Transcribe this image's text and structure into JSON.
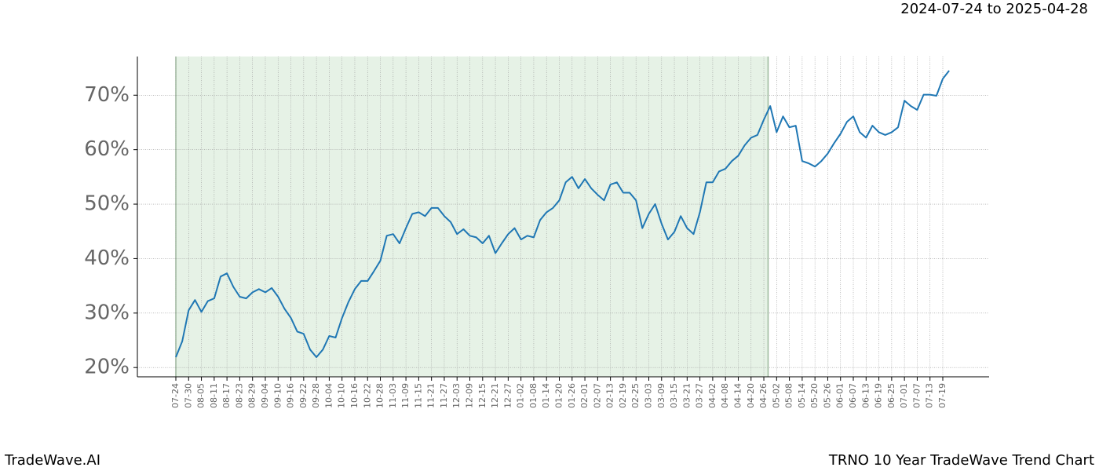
{
  "chart_data": {
    "type": "line",
    "title": "2024-07-24 to 2025-04-28",
    "footer_left": "TradeWave.AI",
    "footer_right": "TRNO 10 Year TradeWave Trend Chart",
    "shaded_range": [
      "2024-07-24",
      "2025-04-28"
    ],
    "categories": [
      "07-24",
      null,
      "07-30",
      null,
      "08-05",
      null,
      "08-11",
      null,
      "08-17",
      null,
      "08-23",
      null,
      "08-29",
      null,
      "09-04",
      null,
      "09-10",
      null,
      "09-16",
      null,
      "09-22",
      null,
      "09-28",
      null,
      "10-04",
      null,
      "10-10",
      null,
      "10-16",
      null,
      "10-22",
      null,
      "10-28",
      null,
      "11-03",
      null,
      "11-09",
      null,
      "11-15",
      null,
      "11-21",
      null,
      "11-27",
      null,
      "12-03",
      null,
      "12-09",
      null,
      "12-15",
      null,
      "12-21",
      null,
      "12-27",
      null,
      "01-02",
      null,
      "01-08",
      null,
      "01-14",
      null,
      "01-20",
      null,
      "01-26",
      null,
      "02-01",
      null,
      "02-07",
      null,
      "02-13",
      null,
      "02-19",
      null,
      "02-25",
      null,
      "03-03",
      null,
      "03-09",
      null,
      "03-15",
      null,
      "03-21",
      null,
      "03-27",
      null,
      "04-02",
      null,
      "04-08",
      null,
      "04-14",
      null,
      "04-20",
      null,
      "04-26",
      null,
      "05-02",
      null,
      "05-08",
      null,
      "05-14",
      null,
      "05-20",
      null,
      "05-26",
      null,
      "06-01",
      null,
      "06-07",
      null,
      "06-13",
      null,
      "06-19",
      null,
      "06-25",
      null,
      "07-01",
      null,
      "07-07",
      null,
      "07-13",
      null,
      "07-19",
      null
    ],
    "series": [
      {
        "color": "#1f77b4",
        "values": [
          21.9,
          24.8,
          30.5,
          32.4,
          30.2,
          32.2,
          32.7,
          36.7,
          37.3,
          34.8,
          33.0,
          32.7,
          33.8,
          34.4,
          33.8,
          34.6,
          33.0,
          30.8,
          29.1,
          26.6,
          26.2,
          23.3,
          21.9,
          23.3,
          25.8,
          25.5,
          29.1,
          32.0,
          34.4,
          35.9,
          35.9,
          37.7,
          39.6,
          44.2,
          44.5,
          42.8,
          45.6,
          48.2,
          48.5,
          47.8,
          49.3,
          49.3,
          47.8,
          46.7,
          44.5,
          45.4,
          44.2,
          43.9,
          42.8,
          44.2,
          41.0,
          42.8,
          44.5,
          45.6,
          43.5,
          44.2,
          43.9,
          47.1,
          48.5,
          49.3,
          50.7,
          54.0,
          55.0,
          52.9,
          54.6,
          52.9,
          51.7,
          50.7,
          53.6,
          54.0,
          52.1,
          52.1,
          50.7,
          45.6,
          48.2,
          50.0,
          46.4,
          43.5,
          44.9,
          47.8,
          45.6,
          44.5,
          48.5,
          54.0,
          54.0,
          56.0,
          56.5,
          57.9,
          58.9,
          60.8,
          62.2,
          62.7,
          65.5,
          68.0,
          63.2,
          66.1,
          64.1,
          64.4,
          57.9,
          57.5,
          56.9,
          57.9,
          59.3,
          61.2,
          62.9,
          65.1,
          66.1,
          63.2,
          62.2,
          64.4,
          63.2,
          62.7,
          63.2,
          64.1,
          69.0,
          68.0,
          67.3,
          70.1,
          70.1,
          69.9,
          73.0,
          74.5
        ]
      }
    ],
    "ylim": [
      18.3,
      77.1
    ],
    "yticks": [
      {
        "value": 20,
        "label": "20%"
      },
      {
        "value": 30,
        "label": "30%"
      },
      {
        "value": 40,
        "label": "40%"
      },
      {
        "value": 50,
        "label": "50%"
      },
      {
        "value": 60,
        "label": "60%"
      },
      {
        "value": 70,
        "label": "70%"
      }
    ],
    "grid": true
  }
}
